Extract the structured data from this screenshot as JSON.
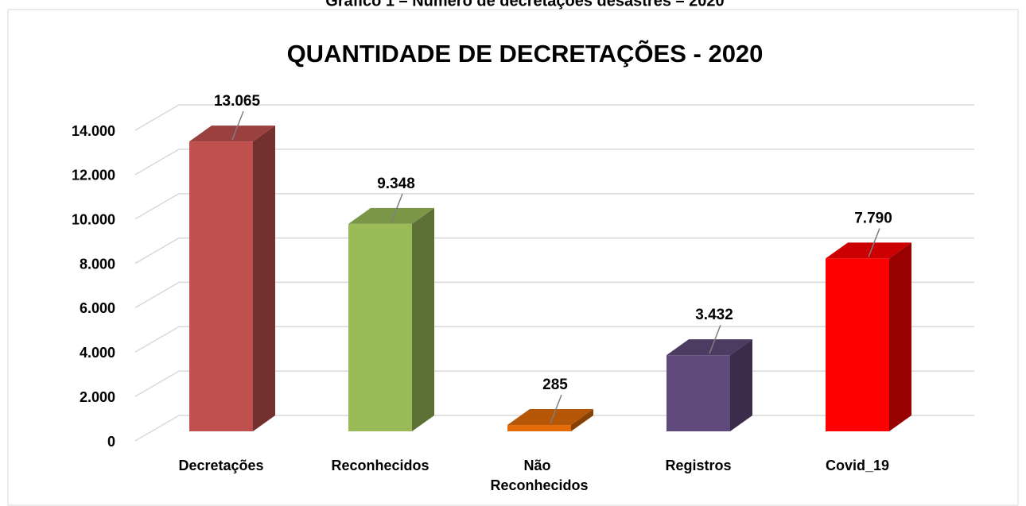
{
  "caption": "Gráfico 1 – Número de decretações desastres – 2020",
  "chart_data": {
    "type": "bar3d",
    "title": "QUANTIDADE DE DECRETAÇÕES - 2020",
    "categories": [
      "Decretações",
      "Reconhecidos",
      "Não Reconhecidos",
      "Registros",
      "Covid_19"
    ],
    "values": [
      13065,
      9348,
      285,
      3432,
      7790
    ],
    "value_labels": [
      "13.065",
      "9.348",
      "285",
      "3.432",
      "7.790"
    ],
    "colors": [
      "#c0504d",
      "#9bbb59",
      "#e36c09",
      "#604a7b",
      "#ff0000"
    ],
    "ylim": [
      0,
      14000
    ],
    "yticks": [
      0,
      {
        "value": 2000,
        "label": "2.000"
      },
      {
        "value": 4000,
        "label": "4.000"
      },
      {
        "value": 6000,
        "label": "6.000"
      },
      {
        "value": 8000,
        "label": "8.000"
      },
      {
        "value": 10000,
        "label": "10.000"
      },
      {
        "value": 12000,
        "label": "12.000"
      },
      {
        "value": 14000,
        "label": "14.000"
      }
    ],
    "grid": true
  }
}
